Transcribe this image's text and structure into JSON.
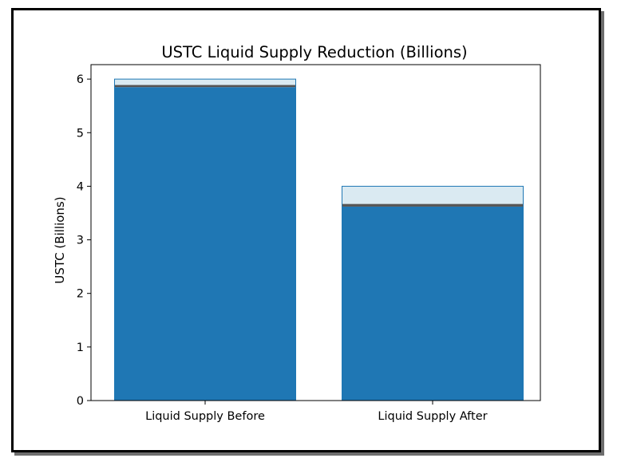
{
  "chart_data": {
    "type": "bar",
    "title": "USTC Liquid Supply Reduction (Billions)",
    "xlabel": "",
    "ylabel": "USTC (Billions)",
    "ylim": [
      0,
      6.27
    ],
    "yticks": [
      0,
      1,
      2,
      3,
      4,
      5,
      6
    ],
    "categories": [
      "Liquid Supply Before",
      "Liquid Supply After"
    ],
    "series": [
      {
        "values": [
          5.85,
          3.62
        ],
        "color": "#1f77b4"
      },
      {
        "values": [
          0.04,
          0.05
        ],
        "color": "#555555"
      },
      {
        "values": [
          0.11,
          0.33
        ],
        "color": "#daeaf2"
      }
    ],
    "totals": [
      6.0,
      4.0
    ],
    "grid": false,
    "legend": "none"
  }
}
